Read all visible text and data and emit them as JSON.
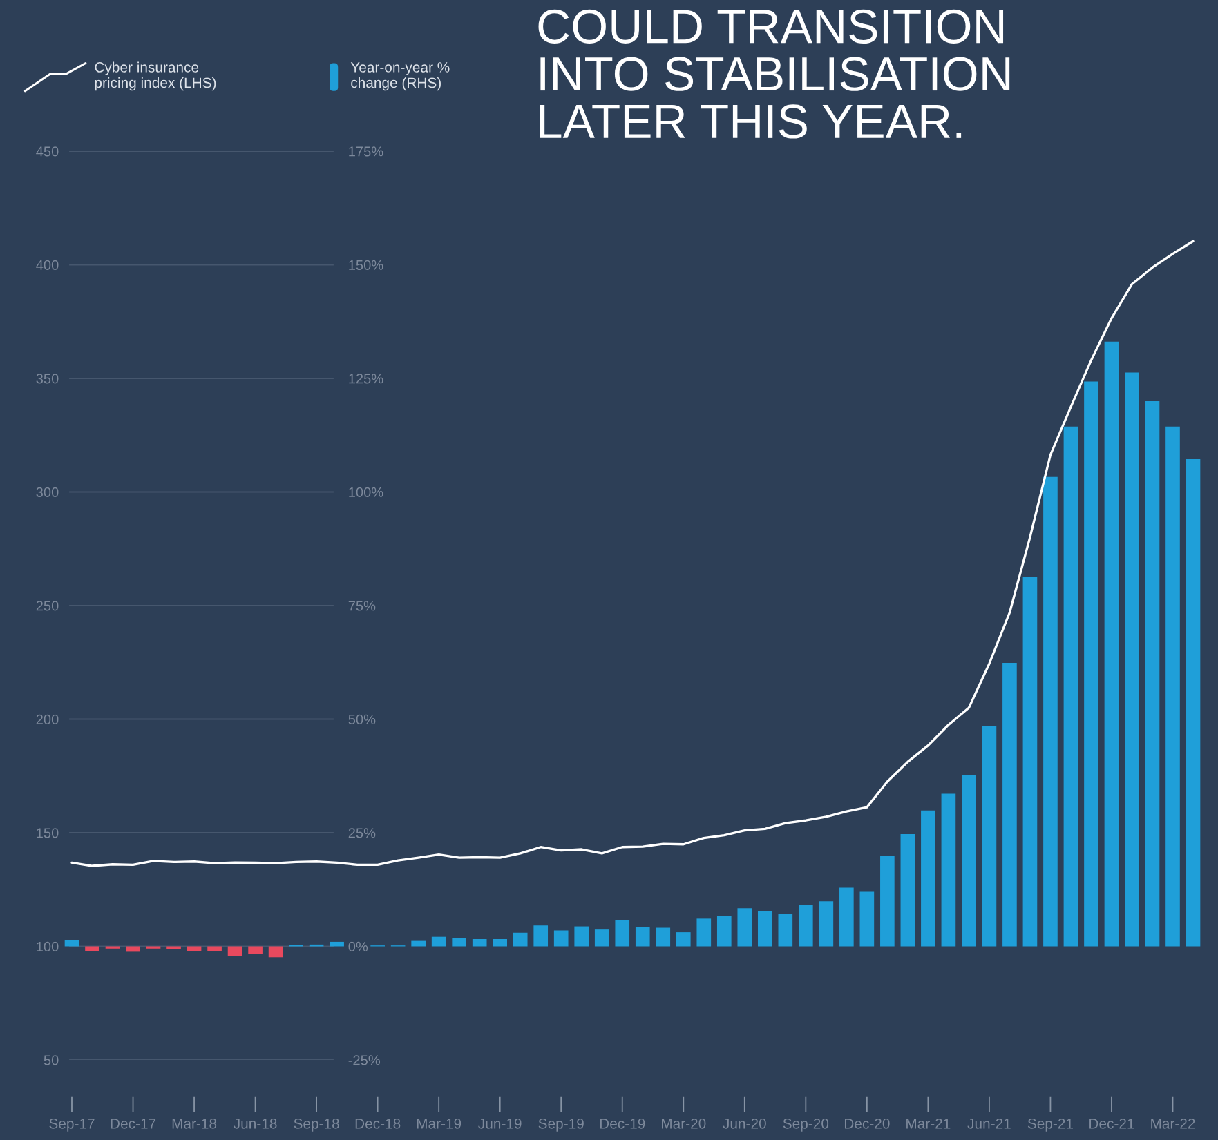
{
  "chart_data": {
    "type": "bar",
    "title": "COULD TRANSITION\nINTO STABILISATION\nLATER THIS YEAR.",
    "categories": [
      "Sep-17",
      null,
      null,
      "Dec-17",
      null,
      null,
      "Mar-18",
      null,
      null,
      "Jun-18",
      null,
      null,
      "Sep-18",
      null,
      null,
      "Dec-18",
      null,
      null,
      "Mar-19",
      null,
      null,
      "Jun-19",
      null,
      null,
      "Sep-19",
      null,
      null,
      "Dec-19",
      null,
      null,
      "Mar-20",
      null,
      null,
      "Jun-20",
      null,
      null,
      "Sep-20",
      null,
      null,
      "Dec-20",
      null,
      null,
      "Mar-21",
      null,
      null,
      "Jun-21",
      null,
      null,
      "Sep-21",
      null,
      null,
      "Dec-21",
      null,
      null,
      "Mar-22",
      null
    ],
    "series": [
      {
        "name": "Year-on-year %\nchange (RHS)",
        "axis": "y2",
        "color": "#1f9fd9",
        "colors": [
          "#1f9fd9",
          "#e9495e",
          "#e9495e",
          "#e9495e",
          "#e9495e",
          "#e9495e",
          "#e9495e",
          "#e9495e",
          "#e9495e",
          "#e9495e",
          "#e9495e",
          "#1f9fd9",
          "#1f9fd9",
          "#1f9fd9",
          "#1f9fd9",
          "#1f9fd9",
          "#1f9fd9",
          "#1f9fd9",
          "#1f9fd9",
          "#1f9fd9",
          "#1f9fd9",
          "#1f9fd9",
          "#1f9fd9",
          "#1f9fd9",
          "#1f9fd9",
          "#1f9fd9",
          "#1f9fd9",
          "#1f9fd9",
          "#1f9fd9",
          "#1f9fd9",
          "#1f9fd9",
          "#1f9fd9",
          "#1f9fd9",
          "#1f9fd9",
          "#1f9fd9",
          "#1f9fd9",
          "#1f9fd9",
          "#1f9fd9",
          "#1f9fd9",
          "#1f9fd9",
          "#1f9fd9",
          "#1f9fd9",
          "#1f9fd9",
          "#1f9fd9",
          "#1f9fd9",
          "#1f9fd9",
          "#1f9fd9",
          "#1f9fd9",
          "#1f9fd9",
          "#1f9fd9",
          "#1f9fd9",
          "#1f9fd9",
          "#1f9fd9",
          "#1f9fd9",
          "#1f9fd9",
          "#1f9fd9"
        ],
        "values": [
          1.3,
          -1.0,
          -0.5,
          -1.2,
          -0.5,
          -0.6,
          -1.0,
          -1.0,
          -2.2,
          -1.7,
          -2.4,
          0.3,
          0.4,
          1.0,
          null,
          0.2,
          0.2,
          1.2,
          2.1,
          1.8,
          1.6,
          1.6,
          3.0,
          4.6,
          3.5,
          4.4,
          3.7,
          5.7,
          4.3,
          4.1,
          3.1,
          6.1,
          6.7,
          8.4,
          7.7,
          7.1,
          9.1,
          9.9,
          12.9,
          12.0,
          19.9,
          24.7,
          29.9,
          33.6,
          37.6,
          48.4,
          62.4,
          81.3,
          103.3,
          114.4,
          124.3,
          133.1,
          126.3,
          120.0,
          114.4,
          107.2
        ]
      },
      {
        "name": "Cyber insurance\npricing index (LHS)",
        "type": "line",
        "color": "#ffffff",
        "values": [
          136.8,
          135.4,
          136.1,
          135.9,
          137.6,
          137.1,
          137.3,
          136.6,
          136.9,
          136.8,
          136.6,
          137.1,
          137.3,
          136.8,
          135.9,
          135.9,
          137.8,
          139.0,
          140.4,
          139.0,
          139.2,
          139.0,
          140.9,
          143.7,
          142.2,
          142.7,
          140.9,
          143.7,
          143.9,
          145.1,
          144.9,
          147.7,
          148.9,
          151.0,
          151.7,
          154.2,
          155.4,
          157.0,
          159.4,
          161.2,
          172.5,
          181.2,
          188.4,
          197.5,
          205.0,
          224.4,
          246.9,
          280.1,
          316.3,
          337.4,
          358.0,
          376.5,
          391.5,
          398.8,
          404.8,
          410.4
        ]
      }
    ],
    "ylim": [
      50,
      450
    ],
    "yticks": [
      50,
      100,
      150,
      200,
      250,
      300,
      350,
      400,
      450
    ],
    "y2lim": [
      -25,
      175
    ],
    "y2ticks": [
      {
        "value": -25,
        "label": "-25%"
      },
      {
        "value": 0,
        "label": "0%"
      },
      {
        "value": 25,
        "label": "25%"
      },
      {
        "value": 50,
        "label": "50%"
      },
      {
        "value": 75,
        "label": "75%"
      },
      {
        "value": 100,
        "label": "100%"
      },
      {
        "value": 125,
        "label": "125%"
      },
      {
        "value": 150,
        "label": "150%"
      },
      {
        "value": 175,
        "label": "175%"
      }
    ],
    "legend": "top left"
  }
}
